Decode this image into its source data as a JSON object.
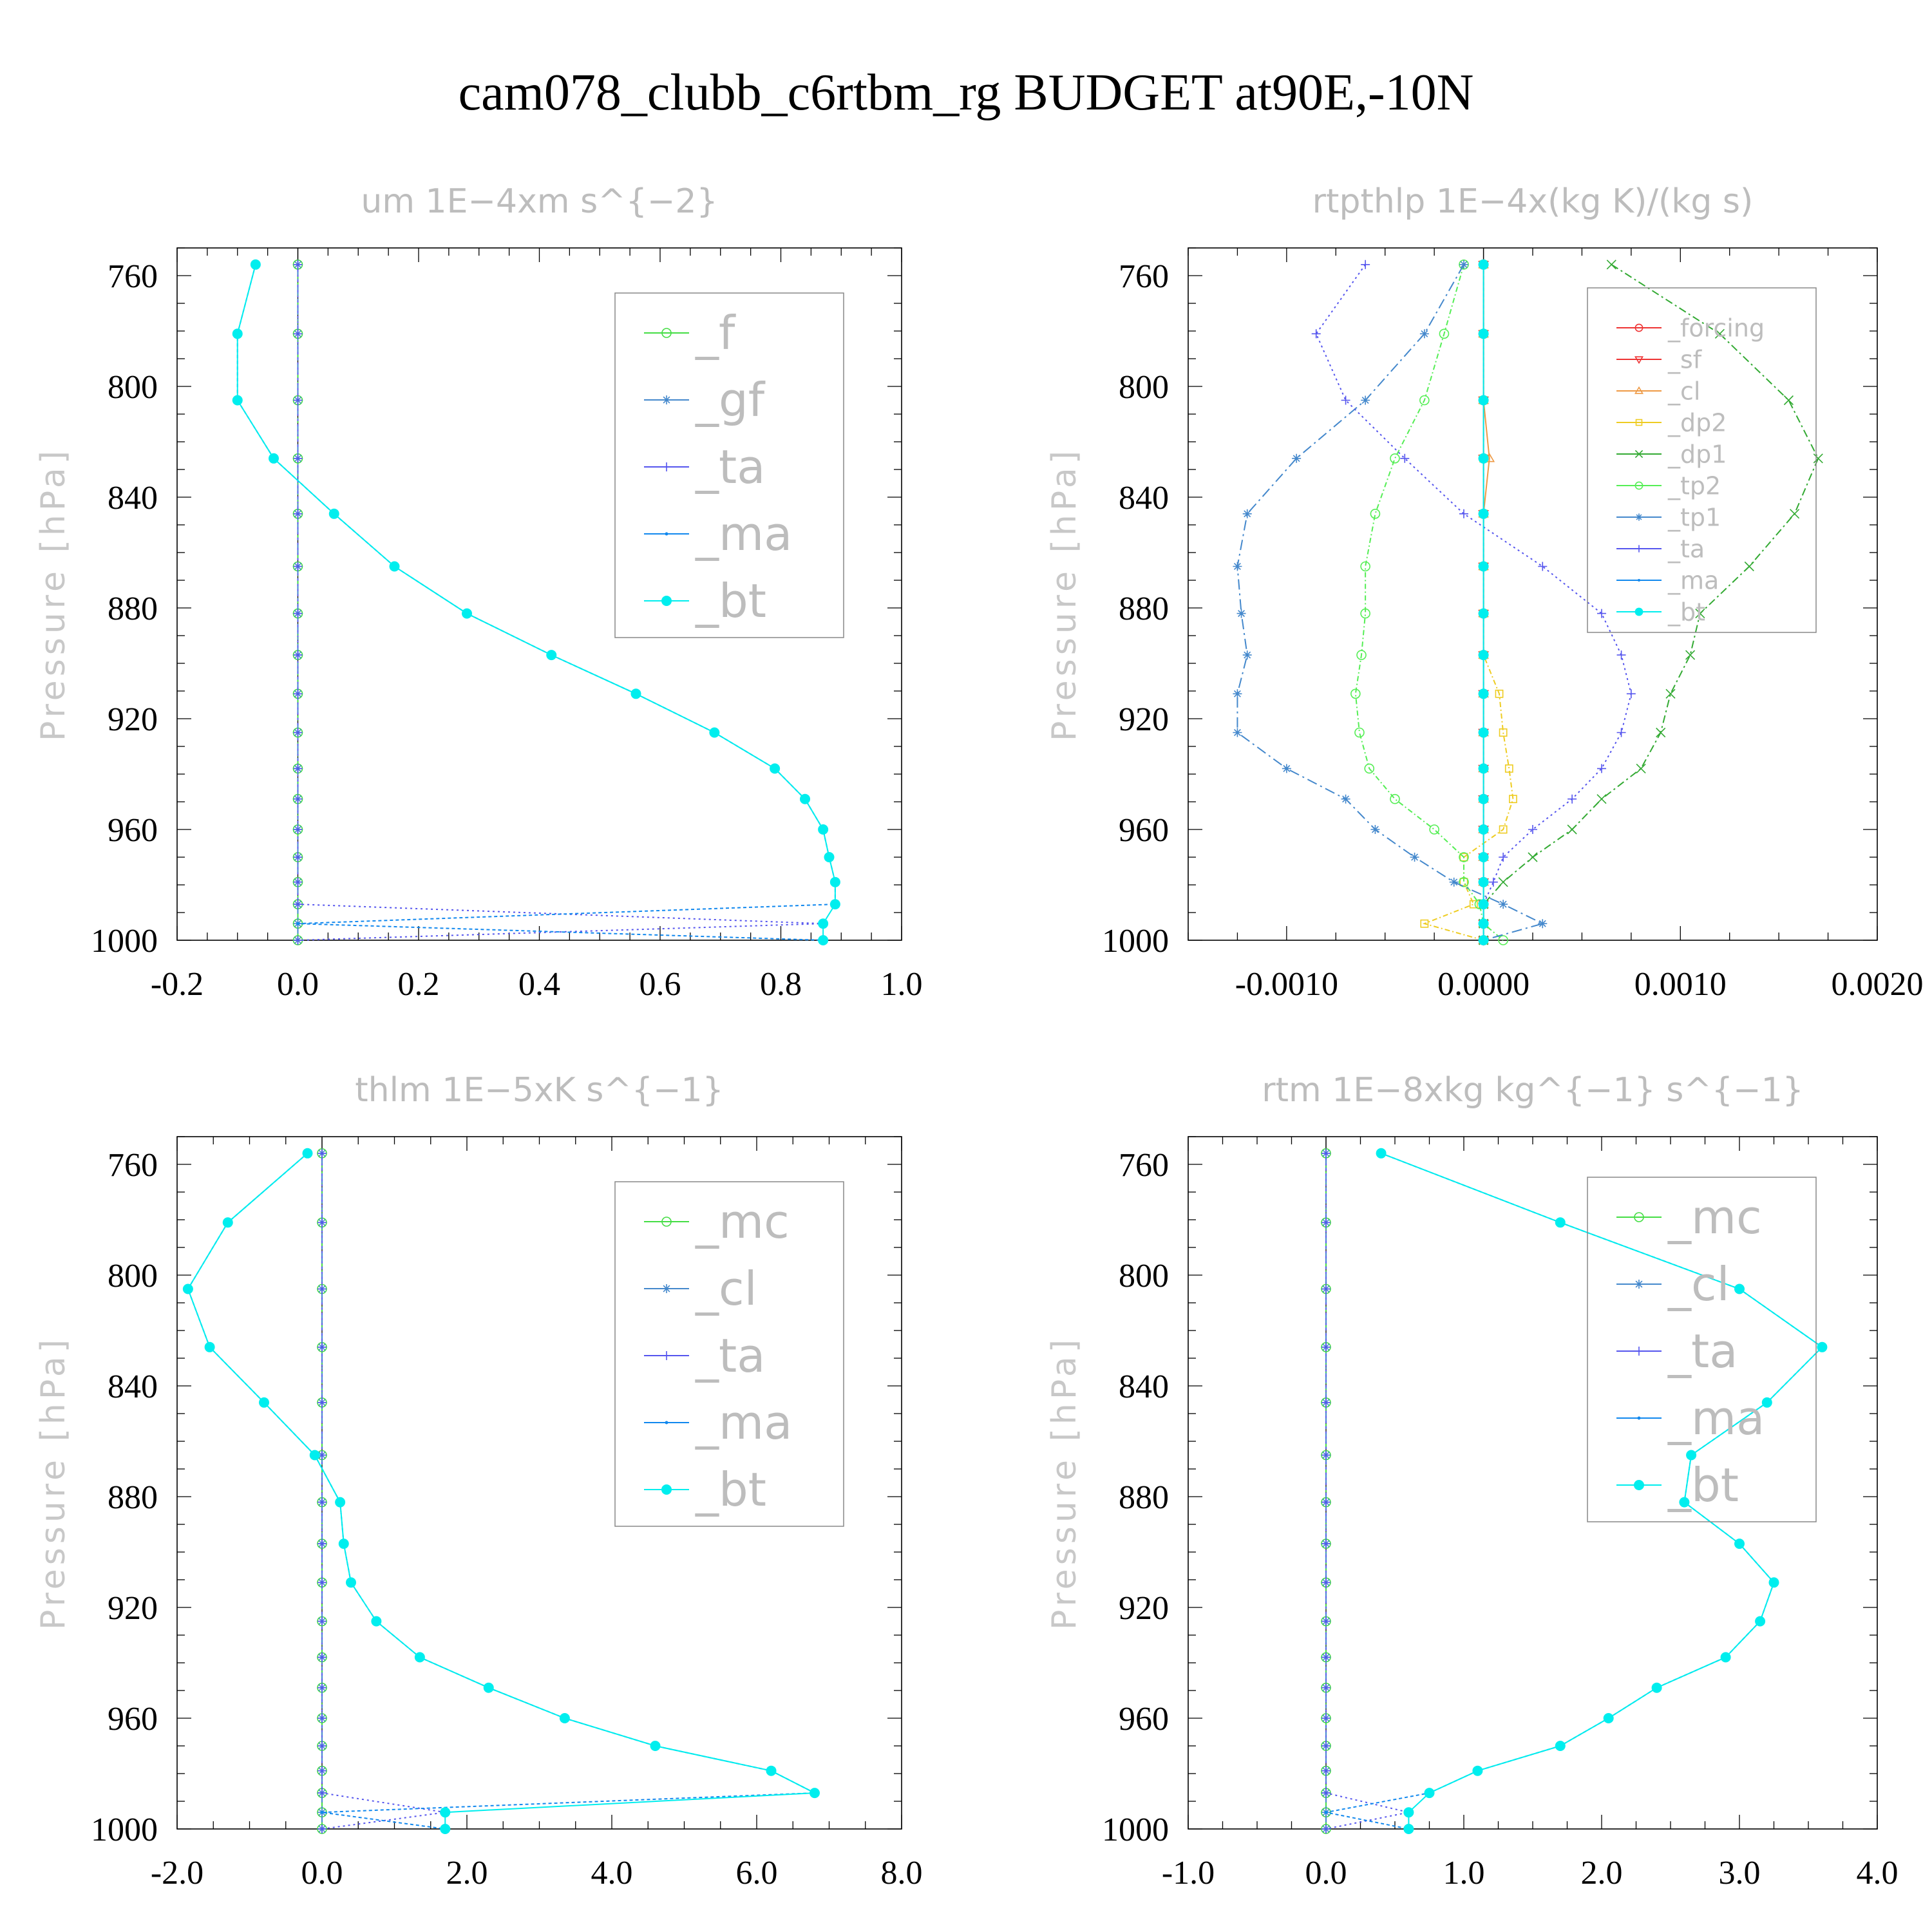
{
  "figure_title": "cam078_clubb_c6rtbm_rg  BUDGET at90E,-10N",
  "chart_data": [
    {
      "type": "line",
      "title": "um   1E−4xm s^{−2}",
      "ylabel": "Pressure [hPa]",
      "xlim": [
        -0.2,
        1.0
      ],
      "ylim": [
        1000,
        750
      ],
      "xticks": [
        -0.2,
        0.0,
        0.2,
        0.4,
        0.6,
        0.8,
        1.0
      ],
      "xtick_labels": [
        "-0.2",
        "0.0",
        "0.2",
        "0.4",
        "0.6",
        "0.8",
        "1.0"
      ],
      "yticks": [
        760,
        800,
        840,
        880,
        920,
        960,
        1000
      ],
      "ytick_labels": [
        "760",
        "800",
        "840",
        "880",
        "920",
        "960",
        "1000"
      ],
      "legend": "upper-right",
      "pressure": [
        756,
        781,
        805,
        826,
        846,
        865,
        882,
        897,
        911,
        925,
        938,
        949,
        960,
        970,
        979,
        987,
        994,
        1000
      ],
      "series": [
        {
          "name": "_f",
          "color": "#44dd44",
          "marker": "circle",
          "dash": "8,6",
          "values": [
            0,
            0,
            0,
            0,
            0,
            0,
            0,
            0,
            0,
            0,
            0,
            0,
            0,
            0,
            0,
            0,
            0,
            0
          ]
        },
        {
          "name": "_gf",
          "color": "#4488cc",
          "marker": "star",
          "dash": "16,6,3,6",
          "values": [
            0,
            0,
            0,
            0,
            0,
            0,
            0,
            0,
            0,
            0,
            0,
            0,
            0,
            0,
            0,
            0,
            0,
            0
          ]
        },
        {
          "name": "_ta",
          "color": "#5555ee",
          "marker": "plus",
          "dash": "3,5",
          "values": [
            0,
            0,
            0,
            0,
            0,
            0,
            0,
            0,
            0,
            0,
            0,
            0,
            0,
            0,
            0,
            0,
            0.87,
            0
          ]
        },
        {
          "name": "_ma",
          "color": "#1188ee",
          "marker": "dot",
          "dash": "5,4",
          "values": [
            -0.07,
            -0.1,
            -0.1,
            -0.04,
            0.06,
            0.16,
            0.28,
            0.42,
            0.56,
            0.69,
            0.79,
            0.84,
            0.87,
            0.88,
            0.89,
            0.89,
            0,
            0.87
          ]
        },
        {
          "name": "_bt",
          "color": "#00eeee",
          "marker": "bigdot",
          "dash": "none",
          "values": [
            -0.07,
            -0.1,
            -0.1,
            -0.04,
            0.06,
            0.16,
            0.28,
            0.42,
            0.56,
            0.69,
            0.79,
            0.84,
            0.87,
            0.88,
            0.89,
            0.89,
            0.87,
            0.87
          ]
        }
      ]
    },
    {
      "type": "line",
      "title": "rtpthlp   1E−4x(kg K)/(kg s)",
      "ylabel": "Pressure [hPa]",
      "xlim": [
        -0.0015,
        0.002
      ],
      "ylim": [
        1000,
        750
      ],
      "xticks": [
        -0.001,
        0.0,
        0.001,
        0.002
      ],
      "xtick_labels": [
        "-0.0010",
        "0.0000",
        "0.0010",
        "0.0020"
      ],
      "yticks": [
        760,
        800,
        840,
        880,
        920,
        960,
        1000
      ],
      "ytick_labels": [
        "760",
        "800",
        "840",
        "880",
        "920",
        "960",
        "1000"
      ],
      "legend": "upper-right",
      "pressure": [
        756,
        781,
        805,
        826,
        846,
        865,
        882,
        897,
        911,
        925,
        938,
        949,
        960,
        970,
        979,
        987,
        994,
        1000
      ],
      "series": [
        {
          "name": "_forcing",
          "color": "#ee3333",
          "marker": "circle",
          "dash": "none",
          "values": [
            0,
            0,
            0,
            0,
            0,
            0,
            0,
            0,
            0,
            0,
            0,
            0,
            0,
            0,
            0,
            0,
            0,
            0
          ]
        },
        {
          "name": "_sf",
          "color": "#ee3333",
          "marker": "triangle-down",
          "dash": "none",
          "values": [
            0,
            0,
            0,
            0,
            0,
            0,
            0,
            0,
            0,
            0,
            0,
            0,
            0,
            0,
            0,
            0,
            0,
            0
          ]
        },
        {
          "name": "_cl",
          "color": "#ee9944",
          "marker": "triangle-up",
          "dash": "none",
          "values": [
            0,
            0,
            0,
            3e-05,
            0,
            0,
            0,
            0,
            0,
            0,
            0,
            0,
            0,
            0,
            0,
            0,
            0,
            0
          ]
        },
        {
          "name": "_dp2",
          "color": "#eecc22",
          "marker": "square",
          "dash": "8,4,2,4",
          "values": [
            0,
            0,
            0,
            0,
            0,
            0,
            0,
            0,
            8e-05,
            0.0001,
            0.00013,
            0.00015,
            0.0001,
            -0.0001,
            -0.0001,
            -5e-05,
            -0.0003,
            0
          ]
        },
        {
          "name": "_dp1",
          "color": "#33aa33",
          "marker": "cross",
          "dash": "12,5,3,5",
          "values": [
            0.00065,
            0.0012,
            0.00155,
            0.0017,
            0.00158,
            0.00135,
            0.0011,
            0.00105,
            0.00095,
            0.0009,
            0.0008,
            0.0006,
            0.00045,
            0.00025,
            0.0001,
            0,
            0,
            0
          ]
        },
        {
          "name": "_tp2",
          "color": "#55ee55",
          "marker": "circle",
          "dash": "8,4,2,4",
          "values": [
            -0.0001,
            -0.0002,
            -0.0003,
            -0.00045,
            -0.00055,
            -0.0006,
            -0.0006,
            -0.00062,
            -0.00065,
            -0.00063,
            -0.00058,
            -0.00045,
            -0.00025,
            -0.0001,
            -0.0001,
            -2e-05,
            0,
            0.0001
          ]
        },
        {
          "name": "_tp1",
          "color": "#4488cc",
          "marker": "star",
          "dash": "16,6,3,6",
          "values": [
            -0.0001,
            -0.0003,
            -0.0006,
            -0.00095,
            -0.0012,
            -0.00125,
            -0.00123,
            -0.0012,
            -0.00125,
            -0.00125,
            -0.001,
            -0.0007,
            -0.00055,
            -0.00035,
            -0.00015,
            0.0001,
            0.0003,
            0
          ]
        },
        {
          "name": "_ta",
          "color": "#5555ee",
          "marker": "plus",
          "dash": "3,5",
          "values": [
            -0.0006,
            -0.00085,
            -0.0007,
            -0.0004,
            -0.0001,
            0.0003,
            0.0006,
            0.0007,
            0.00075,
            0.0007,
            0.0006,
            0.00045,
            0.00025,
            0.0001,
            5e-05,
            0,
            0,
            0
          ]
        },
        {
          "name": "_ma",
          "color": "#1188ee",
          "marker": "dot",
          "dash": "5,4",
          "values": [
            0,
            0,
            0,
            0,
            0,
            0,
            0,
            0,
            0,
            0,
            0,
            0,
            0,
            0,
            0,
            0,
            0,
            0
          ]
        },
        {
          "name": "_bt",
          "color": "#00eeee",
          "marker": "bigdot",
          "dash": "none",
          "values": [
            0,
            0,
            0,
            0,
            0,
            0,
            0,
            0,
            0,
            0,
            0,
            0,
            0,
            0,
            0,
            0,
            0,
            0
          ]
        }
      ]
    },
    {
      "type": "line",
      "title": "thlm   1E−5xK s^{−1}",
      "ylabel": "Pressure [hPa]",
      "xlim": [
        -2.0,
        8.0
      ],
      "ylim": [
        1000,
        750
      ],
      "xticks": [
        -2.0,
        0.0,
        2.0,
        4.0,
        6.0,
        8.0
      ],
      "xtick_labels": [
        "-2.0",
        "0.0",
        "2.0",
        "4.0",
        "6.0",
        "8.0"
      ],
      "yticks": [
        760,
        800,
        840,
        880,
        920,
        960,
        1000
      ],
      "ytick_labels": [
        "760",
        "800",
        "840",
        "880",
        "920",
        "960",
        "1000"
      ],
      "legend": "upper-right",
      "pressure": [
        756,
        781,
        805,
        826,
        846,
        865,
        882,
        897,
        911,
        925,
        938,
        949,
        960,
        970,
        979,
        987,
        994,
        1000
      ],
      "series": [
        {
          "name": "_mc",
          "color": "#44dd44",
          "marker": "circle",
          "dash": "8,6",
          "values": [
            0,
            0,
            0,
            0,
            0,
            0,
            0,
            0,
            0,
            0,
            0,
            0,
            0,
            0,
            0,
            0,
            0,
            0
          ]
        },
        {
          "name": "_cl",
          "color": "#4488cc",
          "marker": "star",
          "dash": "16,6,3,6",
          "values": [
            0,
            0,
            0,
            0,
            0,
            0,
            0,
            0,
            0,
            0,
            0,
            0,
            0,
            0,
            0,
            0,
            0,
            0
          ]
        },
        {
          "name": "_ta",
          "color": "#5555ee",
          "marker": "plus",
          "dash": "3,5",
          "values": [
            0,
            0,
            0,
            0,
            0,
            0,
            0,
            0,
            0,
            0,
            0,
            0,
            0,
            0,
            0,
            0,
            1.7,
            0
          ]
        },
        {
          "name": "_ma",
          "color": "#1188ee",
          "marker": "dot",
          "dash": "5,4",
          "values": [
            -0.2,
            -1.3,
            -1.85,
            -1.55,
            -0.8,
            -0.1,
            0.25,
            0.3,
            0.4,
            0.75,
            1.35,
            2.3,
            3.35,
            4.6,
            6.2,
            6.8,
            0,
            1.7
          ]
        },
        {
          "name": "_bt",
          "color": "#00eeee",
          "marker": "bigdot",
          "dash": "none",
          "values": [
            -0.2,
            -1.3,
            -1.85,
            -1.55,
            -0.8,
            -0.1,
            0.25,
            0.3,
            0.4,
            0.75,
            1.35,
            2.3,
            3.35,
            4.6,
            6.2,
            6.8,
            1.7,
            1.7
          ]
        }
      ]
    },
    {
      "type": "line",
      "title": "rtm   1E−8xkg kg^{−1} s^{−1}",
      "ylabel": "Pressure [hPa]",
      "xlim": [
        -1.0,
        4.0
      ],
      "ylim": [
        1000,
        750
      ],
      "xticks": [
        -1.0,
        0.0,
        1.0,
        2.0,
        3.0,
        4.0
      ],
      "xtick_labels": [
        "-1.0",
        "0.0",
        "1.0",
        "2.0",
        "3.0",
        "4.0"
      ],
      "yticks": [
        760,
        800,
        840,
        880,
        920,
        960,
        1000
      ],
      "ytick_labels": [
        "760",
        "800",
        "840",
        "880",
        "920",
        "960",
        "1000"
      ],
      "legend": "upper-right",
      "pressure": [
        756,
        781,
        805,
        826,
        846,
        865,
        882,
        897,
        911,
        925,
        938,
        949,
        960,
        970,
        979,
        987,
        994,
        1000
      ],
      "series": [
        {
          "name": "_mc",
          "color": "#44dd44",
          "marker": "circle",
          "dash": "8,6",
          "values": [
            0,
            0,
            0,
            0,
            0,
            0,
            0,
            0,
            0,
            0,
            0,
            0,
            0,
            0,
            0,
            0,
            0,
            0
          ]
        },
        {
          "name": "_cl",
          "color": "#4488cc",
          "marker": "star",
          "dash": "16,6,3,6",
          "values": [
            0,
            0,
            0,
            0,
            0,
            0,
            0,
            0,
            0,
            0,
            0,
            0,
            0,
            0,
            0,
            0,
            0,
            0
          ]
        },
        {
          "name": "_ta",
          "color": "#5555ee",
          "marker": "plus",
          "dash": "3,5",
          "values": [
            0,
            0,
            0,
            0,
            0,
            0,
            0,
            0,
            0,
            0,
            0,
            0,
            0,
            0,
            0,
            0,
            0.6,
            0
          ]
        },
        {
          "name": "_ma",
          "color": "#1188ee",
          "marker": "dot",
          "dash": "5,4",
          "values": [
            0.4,
            1.7,
            3.0,
            3.6,
            3.2,
            2.65,
            2.6,
            3.0,
            3.25,
            3.15,
            2.9,
            2.4,
            2.05,
            1.7,
            1.1,
            0.75,
            0,
            0.6
          ]
        },
        {
          "name": "_bt",
          "color": "#00eeee",
          "marker": "bigdot",
          "dash": "none",
          "values": [
            0.4,
            1.7,
            3.0,
            3.6,
            3.2,
            2.65,
            2.6,
            3.0,
            3.25,
            3.15,
            2.9,
            2.4,
            2.05,
            1.7,
            1.1,
            0.75,
            0.6,
            0.6
          ]
        }
      ]
    }
  ]
}
